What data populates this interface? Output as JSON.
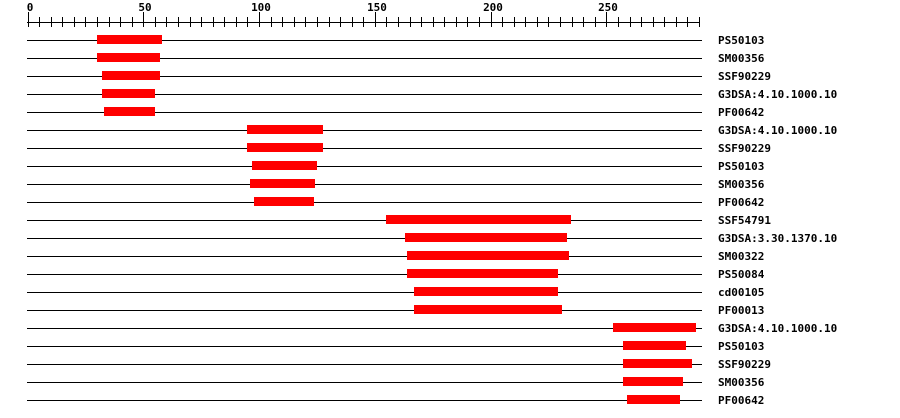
{
  "chart_data": {
    "type": "bar",
    "subtype": "horizontal-domain-tracks",
    "title": "",
    "description": "Protein sequence feature plot: red domain match bars on black track lines with signature accession labels at right",
    "axis": {
      "min": 0,
      "max": 290,
      "minor_tick_interval": 5,
      "major_tick_interval": 50,
      "major_tick_labels": [
        "0",
        "50",
        "100",
        "150",
        "200",
        "250"
      ]
    },
    "colors": {
      "bar": "#ff0000",
      "axis": "#000000",
      "text": "#000000",
      "background": "#ffffff"
    },
    "tracks": [
      {
        "label": "PS50103",
        "start": 30,
        "end": 58
      },
      {
        "label": "SM00356",
        "start": 30,
        "end": 57
      },
      {
        "label": "SSF90229",
        "start": 32,
        "end": 57
      },
      {
        "label": "G3DSA:4.10.1000.10",
        "start": 32,
        "end": 55
      },
      {
        "label": "PF00642",
        "start": 33,
        "end": 55
      },
      {
        "label": "G3DSA:4.10.1000.10",
        "start": 95,
        "end": 128
      },
      {
        "label": "SSF90229",
        "start": 95,
        "end": 128
      },
      {
        "label": "PS50103",
        "start": 97,
        "end": 125
      },
      {
        "label": "SM00356",
        "start": 96,
        "end": 124
      },
      {
        "label": "PF00642",
        "start": 98,
        "end": 124
      },
      {
        "label": "SSF54791",
        "start": 155,
        "end": 235
      },
      {
        "label": "G3DSA:3.30.1370.10",
        "start": 163,
        "end": 233
      },
      {
        "label": "SM00322",
        "start": 164,
        "end": 234
      },
      {
        "label": "PS50084",
        "start": 164,
        "end": 229
      },
      {
        "label": "cd00105",
        "start": 167,
        "end": 229
      },
      {
        "label": "PF00013",
        "start": 167,
        "end": 231
      },
      {
        "label": "G3DSA:4.10.1000.10",
        "start": 253,
        "end": 289
      },
      {
        "label": "PS50103",
        "start": 257,
        "end": 284
      },
      {
        "label": "SSF90229",
        "start": 257,
        "end": 287
      },
      {
        "label": "SM00356",
        "start": 257,
        "end": 283
      },
      {
        "label": "PF00642",
        "start": 259,
        "end": 282
      }
    ]
  }
}
